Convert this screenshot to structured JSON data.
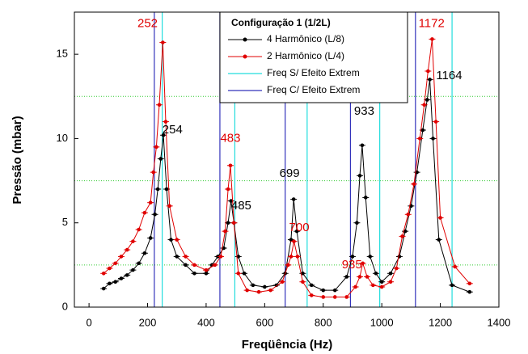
{
  "chart_data": {
    "type": "line",
    "xlabel": "Freqüência (Hz)",
    "ylabel": "Pressão (mbar)",
    "xlim": [
      -50,
      1400
    ],
    "ylim": [
      0,
      17.5
    ],
    "xticks": [
      0,
      200,
      400,
      600,
      800,
      1000,
      1200,
      1400
    ],
    "yticks": [
      0,
      5,
      10,
      15
    ],
    "minor_yticks": [
      2.5,
      7.5,
      12.5,
      17.5
    ],
    "grid_color": "#33cc33",
    "legend_title": "Configuração 1 (1/2L)",
    "series": [
      {
        "name": "4 Harmônico (L/8)",
        "color": "#000000",
        "x": [
          50,
          70,
          90,
          110,
          130,
          150,
          170,
          190,
          210,
          225,
          235,
          245,
          254,
          265,
          280,
          300,
          330,
          360,
          400,
          420,
          440,
          460,
          475,
          485,
          495,
          510,
          530,
          560,
          600,
          640,
          670,
          690,
          699,
          710,
          730,
          760,
          800,
          840,
          880,
          900,
          915,
          925,
          933,
          945,
          960,
          980,
          1000,
          1030,
          1060,
          1080,
          1100,
          1120,
          1140,
          1155,
          1164,
          1175,
          1195,
          1240,
          1300
        ],
        "values": [
          1.1,
          1.4,
          1.5,
          1.7,
          1.9,
          2.2,
          2.6,
          3.2,
          4.1,
          5.5,
          7.0,
          8.8,
          10.2,
          7.0,
          4.0,
          3.0,
          2.5,
          2.0,
          2.0,
          2.5,
          3.0,
          3.5,
          5.0,
          6.3,
          5.0,
          3.0,
          2.0,
          1.3,
          1.2,
          1.3,
          2.0,
          4.0,
          6.4,
          4.5,
          2.0,
          1.3,
          1.0,
          1.0,
          1.8,
          3.0,
          5.0,
          7.8,
          9.6,
          6.5,
          3.0,
          2.0,
          1.5,
          2.0,
          3.0,
          4.5,
          6.0,
          8.0,
          10.5,
          12.3,
          13.5,
          10.0,
          4.0,
          1.3,
          0.9
        ]
      },
      {
        "name": "2 Harmônico (L/4)",
        "color": "#e00000",
        "x": [
          50,
          70,
          90,
          110,
          130,
          150,
          170,
          190,
          210,
          220,
          230,
          240,
          252,
          262,
          275,
          300,
          330,
          360,
          400,
          430,
          450,
          465,
          475,
          483,
          495,
          510,
          540,
          580,
          620,
          660,
          680,
          690,
          700,
          712,
          730,
          760,
          800,
          840,
          880,
          910,
          925,
          935,
          950,
          970,
          1000,
          1030,
          1050,
          1070,
          1090,
          1110,
          1130,
          1145,
          1158,
          1172,
          1185,
          1200,
          1250,
          1300
        ],
        "values": [
          2.0,
          2.3,
          2.6,
          3.0,
          3.4,
          3.9,
          4.6,
          5.6,
          6.2,
          8.0,
          9.5,
          12.0,
          15.7,
          11.0,
          6.0,
          4.0,
          3.0,
          2.5,
          2.2,
          2.5,
          3.0,
          4.5,
          7.0,
          8.4,
          5.0,
          2.0,
          1.0,
          0.9,
          1.0,
          1.5,
          2.5,
          3.0,
          3.9,
          3.0,
          1.5,
          0.7,
          0.6,
          0.6,
          0.6,
          1.2,
          1.8,
          2.6,
          1.8,
          1.3,
          1.2,
          1.5,
          2.3,
          4.2,
          5.5,
          7.3,
          10.0,
          12.0,
          14.0,
          15.9,
          11.0,
          5.3,
          2.4,
          1.4
        ]
      }
    ],
    "reference_lines": [
      {
        "name": "Freq S/ Efeito Extrem",
        "color": "#22dddd",
        "x": [
          250,
          498,
          745,
          993,
          1240
        ]
      },
      {
        "name": "Freq C/ Efeito Extrem",
        "color": "#3333bb",
        "x": [
          223,
          447,
          670,
          893,
          1115
        ]
      }
    ],
    "annotations": [
      {
        "text": "252",
        "color": "#e00000"
      },
      {
        "text": "254",
        "color": "#000000"
      },
      {
        "text": "483",
        "color": "#e00000"
      },
      {
        "text": "485",
        "color": "#000000"
      },
      {
        "text": "699",
        "color": "#000000"
      },
      {
        "text": "700",
        "color": "#e00000"
      },
      {
        "text": "933",
        "color": "#000000"
      },
      {
        "text": "935",
        "color": "#e00000"
      },
      {
        "text": "1172",
        "color": "#e00000"
      },
      {
        "text": "1164",
        "color": "#000000"
      }
    ]
  }
}
